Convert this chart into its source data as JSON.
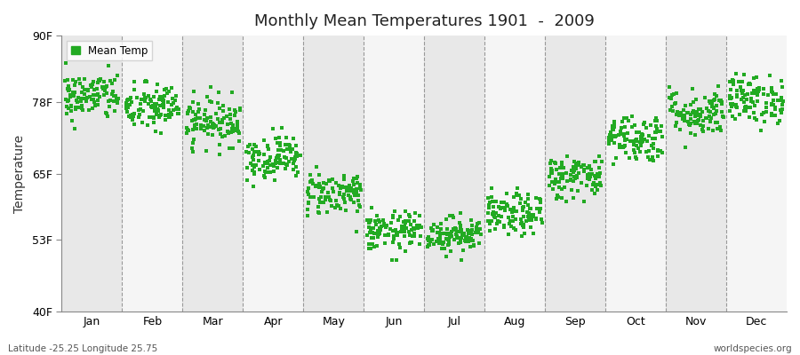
{
  "title": "Monthly Mean Temperatures 1901  -  2009",
  "ylabel": "Temperature",
  "xlabels": [
    "Jan",
    "Feb",
    "Mar",
    "Apr",
    "May",
    "Jun",
    "Jul",
    "Aug",
    "Sep",
    "Oct",
    "Nov",
    "Dec"
  ],
  "yticks": [
    40,
    53,
    65,
    78,
    90
  ],
  "ytick_labels": [
    "40F",
    "53F",
    "65F",
    "78F",
    "90F"
  ],
  "ylim": [
    40,
    90
  ],
  "xlim": [
    0,
    12
  ],
  "dot_color": "#22aa22",
  "dot_size": 6,
  "figure_bg": "#ffffff",
  "plot_bg_odd": "#e8e8e8",
  "plot_bg_even": "#f5f5f5",
  "dashed_color": "#999999",
  "monthly_means": [
    79.0,
    77.0,
    74.5,
    68.0,
    61.5,
    54.5,
    54.0,
    57.5,
    64.5,
    71.5,
    76.0,
    78.5
  ],
  "monthly_stds": [
    2.2,
    2.2,
    2.2,
    2.0,
    2.0,
    1.8,
    1.6,
    1.9,
    2.0,
    2.2,
    2.2,
    2.2
  ],
  "n_years": 109,
  "footer_left": "Latitude -25.25 Longitude 25.75",
  "footer_right": "worldspecies.org",
  "legend_label": "Mean Temp"
}
